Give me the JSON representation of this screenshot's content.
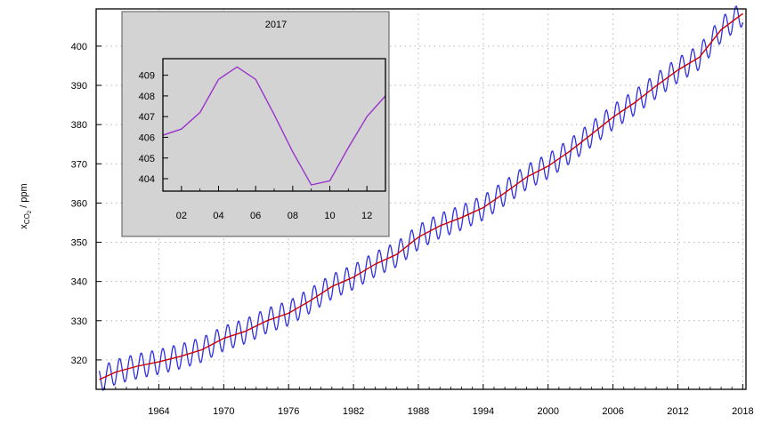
{
  "chart_data": [
    {
      "type": "line",
      "ylabel": "x",
      "ylabel_sub": "CO",
      "ylabel_sub2": "2",
      "ylabel_unit": " / ppm",
      "xlim": [
        1958.2,
        2018.3
      ],
      "ylim": [
        312.5,
        409.5
      ],
      "x_ticks": [
        1964,
        1970,
        1976,
        1982,
        1988,
        1994,
        2000,
        2006,
        2012,
        2018
      ],
      "y_ticks": [
        320,
        330,
        340,
        350,
        360,
        370,
        380,
        390,
        400
      ],
      "grid": "dotted",
      "series": [
        {
          "color": "#2f2fe0",
          "style": "monthly values with seasonal cycle",
          "x": [
            1958.5,
            1960,
            1962,
            1964,
            1966,
            1968,
            1970,
            1972,
            1974,
            1976,
            1978,
            1980,
            1982,
            1984,
            1986,
            1988,
            1990,
            1992,
            1994,
            1996,
            1998,
            2000,
            2002,
            2004,
            2006,
            2008,
            2010,
            2012,
            2014,
            2016,
            2018
          ],
          "y": [
            315.0,
            316.9,
            318.4,
            319.5,
            320.9,
            322.6,
            325.5,
            327.3,
            330.0,
            331.9,
            335.1,
            338.7,
            341.1,
            344.4,
            346.9,
            351.3,
            354.2,
            356.3,
            358.8,
            362.6,
            366.6,
            369.4,
            373.2,
            377.5,
            381.9,
            385.6,
            389.9,
            393.9,
            397.2,
            404.2,
            408.3
          ],
          "seasonal_amplitude_ppm": 3.2
        },
        {
          "color": "#cc0000",
          "style": "smoothed trend",
          "x": [
            1958.5,
            1960,
            1962,
            1964,
            1966,
            1968,
            1970,
            1972,
            1974,
            1976,
            1978,
            1980,
            1982,
            1984,
            1986,
            1988,
            1990,
            1992,
            1994,
            1996,
            1998,
            2000,
            2002,
            2004,
            2006,
            2008,
            2010,
            2012,
            2014,
            2016,
            2018
          ],
          "y": [
            315.0,
            316.9,
            318.4,
            319.5,
            320.9,
            322.6,
            325.5,
            327.3,
            330.0,
            331.9,
            335.1,
            338.7,
            341.1,
            344.4,
            346.9,
            351.3,
            354.2,
            356.3,
            358.8,
            362.6,
            366.6,
            369.4,
            373.2,
            377.5,
            381.9,
            385.6,
            389.9,
            393.9,
            397.2,
            404.2,
            408.3
          ]
        }
      ]
    },
    {
      "type": "line",
      "title": "2017",
      "xlim": [
        1,
        13
      ],
      "ylim": [
        403.4,
        409.8
      ],
      "x_ticks": [
        2,
        4,
        6,
        8,
        10,
        12
      ],
      "x_tick_labels": [
        "02",
        "04",
        "06",
        "08",
        "10",
        "12"
      ],
      "y_ticks": [
        404,
        405,
        406,
        407,
        408,
        409
      ],
      "series": [
        {
          "color": "#9a33cc",
          "x": [
            1,
            2,
            3,
            4,
            5,
            6,
            7,
            8,
            9,
            10,
            11,
            12,
            13
          ],
          "y": [
            406.1,
            406.4,
            407.2,
            408.8,
            409.4,
            408.8,
            407.1,
            405.3,
            403.7,
            403.9,
            405.5,
            407.0,
            408.0
          ]
        }
      ]
    }
  ]
}
